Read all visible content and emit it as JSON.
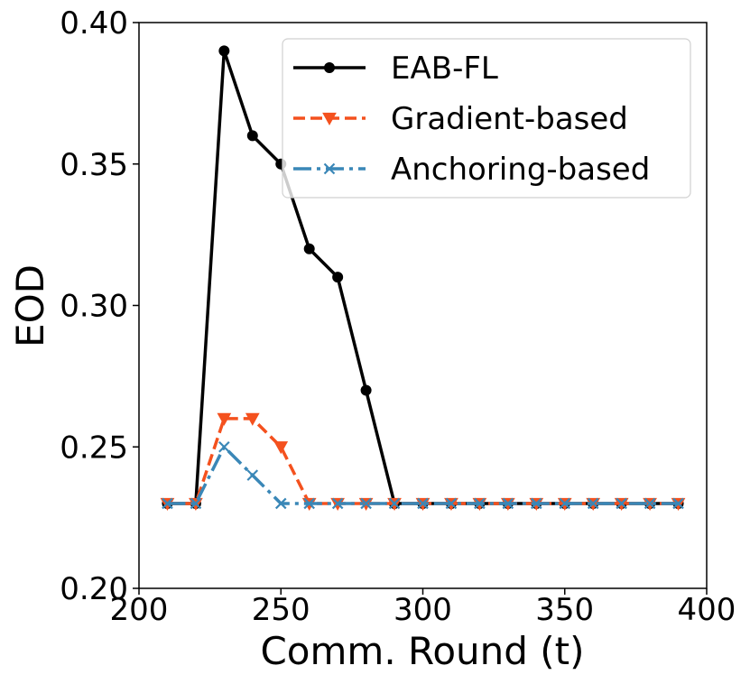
{
  "chart_data": {
    "type": "line",
    "title": "",
    "xlabel": "Comm. Round (t)",
    "ylabel": "EOD",
    "xlim": [
      200,
      400
    ],
    "ylim": [
      0.2,
      0.4
    ],
    "xticks": [
      200,
      250,
      300,
      350,
      400
    ],
    "xtick_labels": [
      "200",
      "250",
      "300",
      "350",
      "400"
    ],
    "yticks": [
      0.2,
      0.25,
      0.3,
      0.35,
      0.4
    ],
    "ytick_labels": [
      "0.20",
      "0.25",
      "0.30",
      "0.35",
      "0.40"
    ],
    "grid": false,
    "legend_position": "top-right",
    "x": [
      210,
      220,
      230,
      240,
      250,
      260,
      270,
      280,
      290,
      300,
      310,
      320,
      330,
      340,
      350,
      360,
      370,
      380,
      390
    ],
    "series": [
      {
        "name": "EAB-FL",
        "color": "#000000",
        "linestyle": "solid",
        "marker": "circle",
        "values": [
          0.23,
          0.23,
          0.39,
          0.36,
          0.35,
          0.32,
          0.31,
          0.27,
          0.23,
          0.23,
          0.23,
          0.23,
          0.23,
          0.23,
          0.23,
          0.23,
          0.23,
          0.23,
          0.23
        ]
      },
      {
        "name": "Gradient-based",
        "color": "#f4511e",
        "linestyle": "dashed",
        "marker": "triangle-down",
        "values": [
          0.23,
          0.23,
          0.26,
          0.26,
          0.25,
          0.23,
          0.23,
          0.23,
          0.23,
          0.23,
          0.23,
          0.23,
          0.23,
          0.23,
          0.23,
          0.23,
          0.23,
          0.23,
          0.23
        ]
      },
      {
        "name": "Anchoring-based",
        "color": "#3a87b7",
        "linestyle": "dashdot",
        "marker": "x",
        "values": [
          0.23,
          0.23,
          0.25,
          0.24,
          0.23,
          0.23,
          0.23,
          0.23,
          0.23,
          0.23,
          0.23,
          0.23,
          0.23,
          0.23,
          0.23,
          0.23,
          0.23,
          0.23,
          0.23
        ]
      }
    ]
  }
}
